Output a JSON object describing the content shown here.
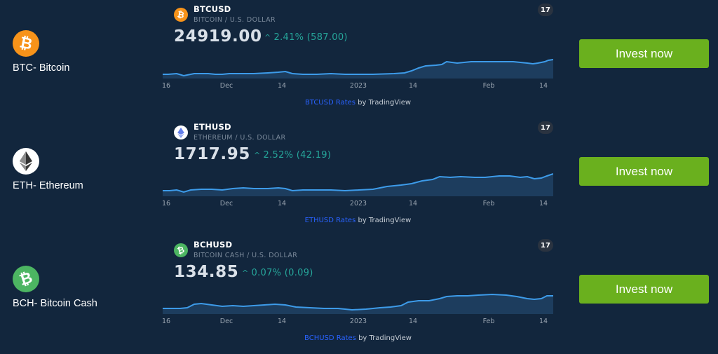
{
  "axis_ticks": [
    "16",
    "Dec",
    "14",
    "2023",
    "14",
    "Feb",
    "14"
  ],
  "attribution_suffix": " by TradingView",
  "tradingview_logo": "tradingview-logo-icon",
  "invest_label": "Invest now",
  "colors": {
    "background": "#12263d",
    "line": "#3d9be9",
    "fill": "#1d3d5e",
    "change_up": "#26a69a",
    "invest_button": "#6ab01e",
    "link": "#2962ff"
  },
  "coins": [
    {
      "id": "btc",
      "label": "BTC- Bitcoin",
      "icon": "bitcoin-icon",
      "icon_color": "#f7931a",
      "glyph": "₿",
      "symbol": "BTCUSD",
      "description": "BITCOIN / U.S. DOLLAR",
      "price": "24919.00",
      "change": "2.41% (587.00)",
      "rates_link": "BTCUSD Rates"
    },
    {
      "id": "eth",
      "label": "ETH- Ethereum",
      "icon": "ethereum-icon",
      "icon_color": "#ffffff",
      "glyph": "◆",
      "symbol": "ETHUSD",
      "description": "ETHEREUM / U.S. DOLLAR",
      "price": "1717.95",
      "change": "2.52% (42.19)",
      "rates_link": "ETHUSD Rates"
    },
    {
      "id": "bch",
      "label": "BCH- Bitcoin Cash",
      "icon": "bitcoin-cash-icon",
      "icon_color": "#4cb562",
      "glyph": "₿",
      "symbol": "BCHUSD",
      "description": "BITCOIN CASH / U.S. DOLLAR",
      "price": "134.85",
      "change": "0.07% (0.09)",
      "rates_link": "BCHUSD Rates"
    }
  ]
}
